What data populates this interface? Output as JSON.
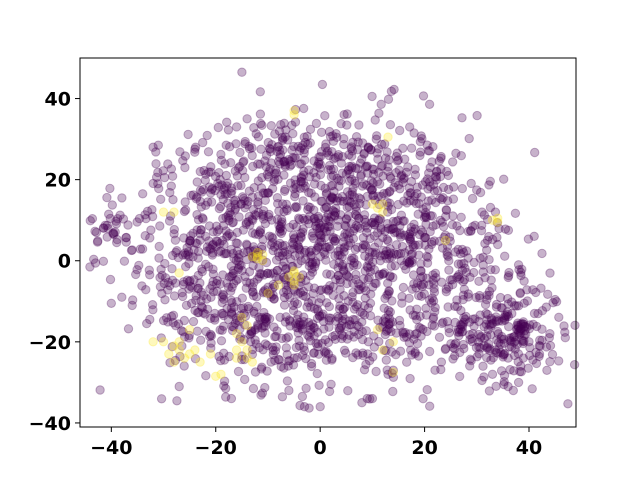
{
  "chart_data": {
    "type": "scatter",
    "title": "",
    "xlabel": "",
    "ylabel": "",
    "xlim": [
      -46,
      49
    ],
    "ylim": [
      -41,
      50
    ],
    "x_ticks": [
      -40,
      -20,
      0,
      20,
      40
    ],
    "y_ticks": [
      -40,
      -20,
      0,
      20,
      40
    ],
    "x_tick_labels": [
      "−40",
      "−20",
      "0",
      "20",
      "40"
    ],
    "y_tick_labels": [
      "−40",
      "−20",
      "0",
      "20",
      "40"
    ],
    "grid": false,
    "legend": "none",
    "marker_alpha": 0.3,
    "colors": {
      "class_0": "#440154",
      "class_1": "#fde725"
    },
    "series": [
      {
        "color": "#440154",
        "clusters": [
          {
            "cx": 2,
            "cy": 8,
            "sx": 13,
            "sy": 14,
            "n": 900
          },
          {
            "cx": -22,
            "cy": 2,
            "sx": 8,
            "sy": 12,
            "n": 250
          },
          {
            "cx": -10,
            "cy": -15,
            "sx": 10,
            "sy": 8,
            "n": 200
          },
          {
            "cx": 35,
            "cy": -18,
            "sx": 6,
            "sy": 6,
            "n": 230
          },
          {
            "cx": 22,
            "cy": 2,
            "sx": 8,
            "sy": 10,
            "n": 200
          },
          {
            "cx": -40,
            "cy": 8,
            "sx": 2,
            "sy": 2,
            "n": 30
          },
          {
            "cx": 8,
            "cy": -20,
            "sx": 10,
            "sy": 6,
            "n": 140
          },
          {
            "cx": -5,
            "cy": 25,
            "sx": 10,
            "sy": 5,
            "n": 120
          },
          {
            "cx": 22,
            "cy": 20,
            "sx": 2,
            "sy": 2,
            "n": 15
          }
        ],
        "points": [
          [
            -15,
            46.5
          ],
          [
            -40,
            -10.5
          ],
          [
            -38,
            -9
          ],
          [
            -36,
            -11
          ],
          [
            -34,
            16.5
          ],
          [
            -32,
            28
          ],
          [
            -31,
            28.5
          ],
          [
            -24,
            27.5
          ],
          [
            -18,
            28.5
          ],
          [
            -16,
            33
          ],
          [
            -14,
            35
          ],
          [
            18,
            31.5
          ],
          [
            26,
            26.5
          ],
          [
            36,
            -31
          ],
          [
            37,
            -32
          ],
          [
            38,
            -30
          ],
          [
            33,
            -28
          ],
          [
            31,
            -29.5
          ],
          [
            8,
            -35
          ],
          [
            9,
            -34
          ],
          [
            10,
            -34
          ],
          [
            -3,
            -36
          ],
          [
            0,
            -36
          ],
          [
            -27,
            -31
          ],
          [
            -17,
            -34
          ],
          [
            13,
            -28
          ],
          [
            14,
            -27
          ],
          [
            22,
            -27
          ],
          [
            34,
            4
          ],
          [
            38,
            -1
          ],
          [
            40,
            -20
          ],
          [
            44,
            -18
          ],
          [
            42,
            -23
          ],
          [
            36,
            -24
          ]
        ]
      },
      {
        "color": "#fde725",
        "points": [
          [
            -28,
            -21
          ],
          [
            -27,
            -22
          ],
          [
            -29,
            -23
          ],
          [
            -26,
            -24
          ],
          [
            -25,
            -23
          ],
          [
            -28,
            -25
          ],
          [
            -24,
            -22
          ],
          [
            -21,
            -23
          ],
          [
            -30,
            -20
          ],
          [
            -32,
            -20
          ],
          [
            -27,
            -20
          ],
          [
            -23,
            -25
          ],
          [
            -19,
            -28
          ],
          [
            -20,
            -28.5
          ],
          [
            -16,
            -24
          ],
          [
            -14,
            -24
          ],
          [
            -14,
            -22
          ],
          [
            -15,
            -20
          ],
          [
            -16,
            -18
          ],
          [
            -14,
            -16
          ],
          [
            -15,
            -14
          ],
          [
            -16,
            -22
          ],
          [
            -13,
            -25
          ],
          [
            -12,
            1
          ],
          [
            -12,
            2
          ],
          [
            -11,
            1.5
          ],
          [
            -12,
            0.5
          ],
          [
            -13,
            1
          ],
          [
            -11,
            0
          ],
          [
            -5,
            -3
          ],
          [
            -5,
            -5
          ],
          [
            -4,
            -4
          ],
          [
            -6,
            -4
          ],
          [
            -5,
            -6
          ],
          [
            -5,
            -2.5
          ],
          [
            -5,
            37
          ],
          [
            -5,
            36
          ],
          [
            12,
            14
          ],
          [
            11,
            13
          ],
          [
            10,
            14
          ],
          [
            12,
            12
          ],
          [
            34,
            9.5
          ],
          [
            34,
            10.5
          ],
          [
            33,
            10
          ],
          [
            13,
            30.5
          ],
          [
            24,
            5
          ],
          [
            11,
            -17
          ],
          [
            14,
            -20
          ],
          [
            12,
            -22
          ],
          [
            -28,
            12
          ],
          [
            -30,
            12
          ],
          [
            -27,
            -3
          ],
          [
            -10,
            -8
          ],
          [
            -8,
            -6
          ],
          [
            -25,
            -17
          ],
          [
            14,
            -27.5
          ]
        ]
      }
    ]
  }
}
